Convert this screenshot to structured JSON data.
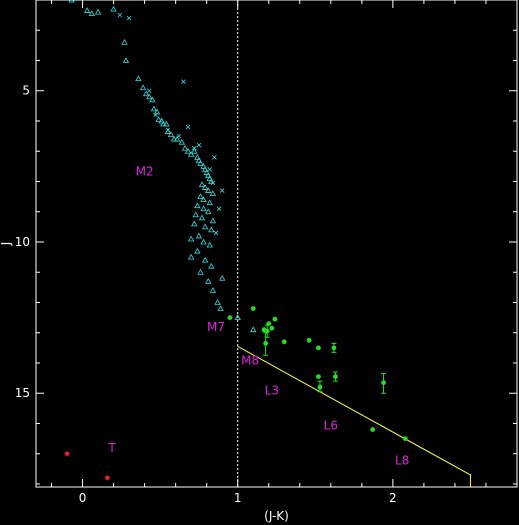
{
  "chart_data": {
    "type": "scatter",
    "title": "",
    "xlabel": "(J-K)",
    "ylabel": "J",
    "xlim": [
      -0.3,
      2.8
    ],
    "ylim": [
      18.1,
      2.0
    ],
    "y_inverted": true,
    "grid": false,
    "x_ticks": [
      {
        "value": 0,
        "label": "0"
      },
      {
        "value": 1,
        "label": "1"
      },
      {
        "value": 2,
        "label": "2"
      }
    ],
    "y_ticks": [
      {
        "value": 5,
        "label": "5"
      },
      {
        "value": 10,
        "label": "10"
      },
      {
        "value": 15,
        "label": "15"
      }
    ],
    "colors": {
      "background": "#000000",
      "axes": "#ffffff",
      "stars_triangle": "#33dddd",
      "stars_cross": "#33dddd",
      "dwarfs": "#22dd22",
      "t_dwarfs": "#ff2222",
      "annotations": "#dd22dd",
      "relation_line": "#ffff44",
      "divider": "#ffffff"
    },
    "reference_line": {
      "x": 1.0,
      "style": "dotted"
    },
    "relation_line": [
      {
        "x": 1.0,
        "y": 13.45
      },
      {
        "x": 2.5,
        "y": 17.7
      },
      {
        "x": 2.5,
        "y": 18.1
      }
    ],
    "annotations": [
      {
        "text": "M2",
        "x": 0.4,
        "y": 7.8
      },
      {
        "text": "M7",
        "x": 0.86,
        "y": 12.95
      },
      {
        "text": "M8",
        "x": 1.08,
        "y": 14.05
      },
      {
        "text": "L3",
        "x": 1.22,
        "y": 15.05
      },
      {
        "text": "L6",
        "x": 1.6,
        "y": 16.2
      },
      {
        "text": "L8",
        "x": 2.06,
        "y": 17.35
      },
      {
        "text": "T",
        "x": 0.19,
        "y": 16.95
      }
    ],
    "series": [
      {
        "marker": "triangle",
        "points": [
          {
            "x": -0.07,
            "y": 2.0
          },
          {
            "x": 0.03,
            "y": 2.35
          },
          {
            "x": 0.06,
            "y": 2.45
          },
          {
            "x": 0.1,
            "y": 2.4
          },
          {
            "x": 0.2,
            "y": 2.3
          },
          {
            "x": 0.27,
            "y": 3.4
          },
          {
            "x": 0.28,
            "y": 4.0
          },
          {
            "x": 0.36,
            "y": 4.6
          },
          {
            "x": 0.39,
            "y": 4.9
          },
          {
            "x": 0.41,
            "y": 5.1
          },
          {
            "x": 0.43,
            "y": 5.2
          },
          {
            "x": 0.45,
            "y": 5.3
          },
          {
            "x": 0.46,
            "y": 5.6
          },
          {
            "x": 0.48,
            "y": 5.7
          },
          {
            "x": 0.49,
            "y": 5.95
          },
          {
            "x": 0.51,
            "y": 6.0
          },
          {
            "x": 0.52,
            "y": 6.1
          },
          {
            "x": 0.54,
            "y": 6.1
          },
          {
            "x": 0.55,
            "y": 6.35
          },
          {
            "x": 0.57,
            "y": 6.45
          },
          {
            "x": 0.59,
            "y": 6.6
          },
          {
            "x": 0.61,
            "y": 6.6
          },
          {
            "x": 0.64,
            "y": 6.7
          },
          {
            "x": 0.66,
            "y": 6.9
          },
          {
            "x": 0.68,
            "y": 7.0
          },
          {
            "x": 0.7,
            "y": 7.1
          },
          {
            "x": 0.72,
            "y": 7.0
          },
          {
            "x": 0.74,
            "y": 7.2
          },
          {
            "x": 0.75,
            "y": 7.3
          },
          {
            "x": 0.76,
            "y": 7.4
          },
          {
            "x": 0.78,
            "y": 7.5
          },
          {
            "x": 0.79,
            "y": 7.6
          },
          {
            "x": 0.8,
            "y": 7.7
          },
          {
            "x": 0.81,
            "y": 7.8
          },
          {
            "x": 0.82,
            "y": 7.9
          },
          {
            "x": 0.83,
            "y": 8.0
          },
          {
            "x": 0.77,
            "y": 8.1
          },
          {
            "x": 0.79,
            "y": 8.2
          },
          {
            "x": 0.81,
            "y": 8.3
          },
          {
            "x": 0.84,
            "y": 8.4
          },
          {
            "x": 0.76,
            "y": 8.5
          },
          {
            "x": 0.78,
            "y": 8.6
          },
          {
            "x": 0.82,
            "y": 8.7
          },
          {
            "x": 0.74,
            "y": 8.8
          },
          {
            "x": 0.78,
            "y": 8.9
          },
          {
            "x": 0.81,
            "y": 9.0
          },
          {
            "x": 0.73,
            "y": 9.1
          },
          {
            "x": 0.77,
            "y": 9.2
          },
          {
            "x": 0.84,
            "y": 9.3
          },
          {
            "x": 0.72,
            "y": 9.4
          },
          {
            "x": 0.79,
            "y": 9.5
          },
          {
            "x": 0.83,
            "y": 9.6
          },
          {
            "x": 0.75,
            "y": 9.8
          },
          {
            "x": 0.7,
            "y": 9.9
          },
          {
            "x": 0.78,
            "y": 10.0
          },
          {
            "x": 0.82,
            "y": 10.1
          },
          {
            "x": 0.74,
            "y": 10.3
          },
          {
            "x": 0.7,
            "y": 10.5
          },
          {
            "x": 0.79,
            "y": 10.6
          },
          {
            "x": 0.83,
            "y": 10.8
          },
          {
            "x": 0.76,
            "y": 11.0
          },
          {
            "x": 0.81,
            "y": 11.3
          },
          {
            "x": 0.9,
            "y": 11.2
          },
          {
            "x": 0.84,
            "y": 11.6
          },
          {
            "x": 0.87,
            "y": 12.0
          },
          {
            "x": 0.89,
            "y": 12.2
          },
          {
            "x": 1.0,
            "y": 12.5
          },
          {
            "x": 1.1,
            "y": 12.9
          }
        ]
      },
      {
        "marker": "cross",
        "points": [
          {
            "x": 0.24,
            "y": 2.5
          },
          {
            "x": 0.3,
            "y": 2.6
          },
          {
            "x": 0.65,
            "y": 4.7
          },
          {
            "x": 0.43,
            "y": 5.0
          },
          {
            "x": 0.47,
            "y": 5.8
          },
          {
            "x": 0.55,
            "y": 6.3
          },
          {
            "x": 0.62,
            "y": 6.5
          },
          {
            "x": 0.68,
            "y": 6.2
          },
          {
            "x": 0.75,
            "y": 6.8
          },
          {
            "x": 0.82,
            "y": 7.6
          },
          {
            "x": 0.85,
            "y": 7.2
          },
          {
            "x": 0.9,
            "y": 8.3
          },
          {
            "x": 0.88,
            "y": 8.9
          },
          {
            "x": 0.86,
            "y": 9.7
          },
          {
            "x": 0.72,
            "y": 6.9
          },
          {
            "x": 0.84,
            "y": 8.05
          }
        ]
      },
      {
        "marker": "dot",
        "points": [
          {
            "x": 0.95,
            "y": 12.5
          },
          {
            "x": 1.1,
            "y": 12.2
          },
          {
            "x": 1.17,
            "y": 12.9
          },
          {
            "x": 1.19,
            "y": 12.95
          },
          {
            "x": 1.2,
            "y": 12.7
          },
          {
            "x": 1.22,
            "y": 12.85
          },
          {
            "x": 1.24,
            "y": 12.55
          },
          {
            "x": 1.18,
            "y": 13.35
          },
          {
            "x": 1.3,
            "y": 13.3
          },
          {
            "x": 1.46,
            "y": 13.25
          },
          {
            "x": 1.52,
            "y": 13.5
          },
          {
            "x": 1.53,
            "y": 14.8
          },
          {
            "x": 1.62,
            "y": 13.5
          },
          {
            "x": 1.63,
            "y": 14.45
          },
          {
            "x": 1.52,
            "y": 14.45
          },
          {
            "x": 1.87,
            "y": 16.2
          },
          {
            "x": 2.08,
            "y": 16.5
          }
        ],
        "error_bars": [
          {
            "x": 1.18,
            "y": 13.35,
            "y_low": 13.75,
            "y_high": 13.0
          },
          {
            "x": 1.19,
            "y": 12.95,
            "y_low": 13.15,
            "y_high": 12.75
          },
          {
            "x": 1.62,
            "y": 13.5,
            "y_low": 13.65,
            "y_high": 13.35
          },
          {
            "x": 1.63,
            "y": 14.45,
            "y_low": 14.6,
            "y_high": 14.3
          },
          {
            "x": 1.53,
            "y": 14.8,
            "y_low": 14.95,
            "y_high": 14.6
          },
          {
            "x": 1.94,
            "y": 14.65,
            "y_low": 15.0,
            "y_high": 14.35
          }
        ],
        "extra_points": [
          {
            "x": 1.94,
            "y": 14.65
          }
        ]
      },
      {
        "marker": "star",
        "points": [
          {
            "x": -0.1,
            "y": 17.0
          },
          {
            "x": 0.16,
            "y": 17.8
          }
        ]
      }
    ]
  }
}
